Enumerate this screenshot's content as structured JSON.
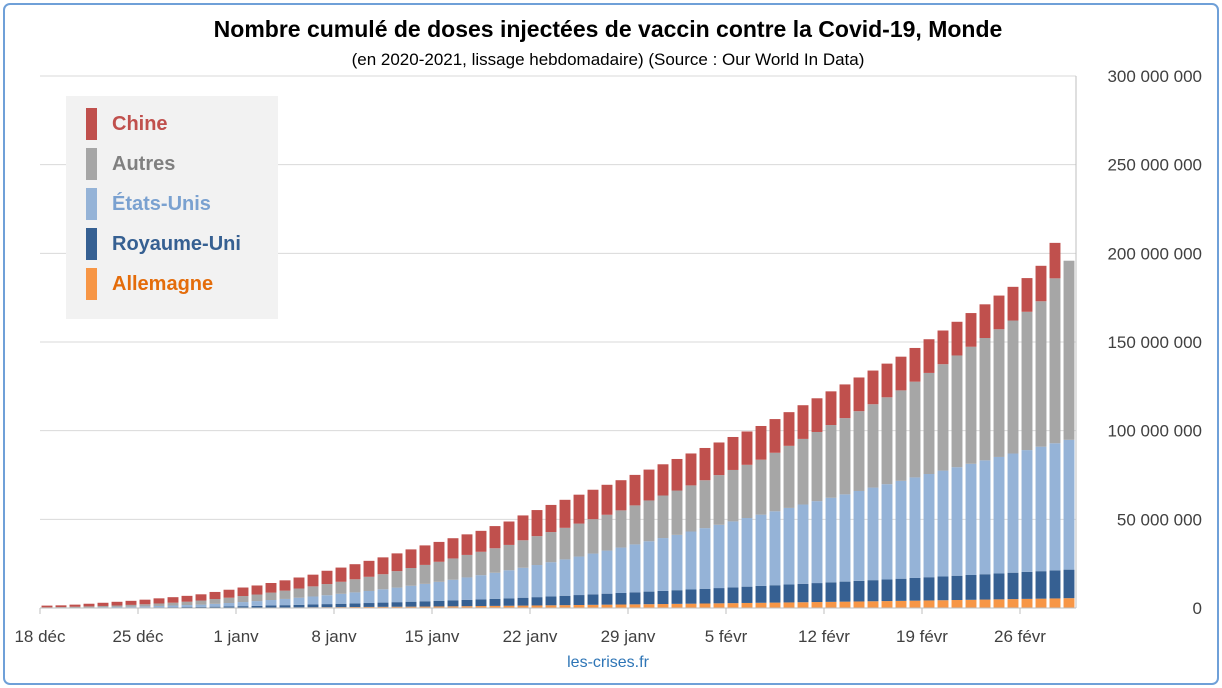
{
  "chart_data": {
    "type": "bar",
    "stacked": true,
    "title": "Nombre cumulé de doses injectées de vaccin contre la Covid-19, Monde",
    "subtitle": "(en 2020-2021, lissage hebdomadaire) (Source : Our World In Data)",
    "source_credit": "les-crises.fr",
    "xlabel": "",
    "ylabel": "",
    "ylim": [
      0,
      300000000
    ],
    "y_axis_position": "right",
    "y_ticks": [
      {
        "value": 0,
        "label": "0"
      },
      {
        "value": 50000000,
        "label": "50 000 000"
      },
      {
        "value": 100000000,
        "label": "100 000 000"
      },
      {
        "value": 150000000,
        "label": "150 000 000"
      },
      {
        "value": 200000000,
        "label": "200 000 000"
      },
      {
        "value": 250000000,
        "label": "250 000 000"
      },
      {
        "value": 300000000,
        "label": "300 000 000"
      }
    ],
    "grid": "horizontal",
    "legend_position": "top-left",
    "x_start_label": "18 déc",
    "x_ticks": [
      {
        "index": 0,
        "label": "18 déc"
      },
      {
        "index": 7,
        "label": "25 déc"
      },
      {
        "index": 14,
        "label": "1 janv"
      },
      {
        "index": 21,
        "label": "8 janv"
      },
      {
        "index": 28,
        "label": "15 janv"
      },
      {
        "index": 35,
        "label": "22 janv"
      },
      {
        "index": 42,
        "label": "29 janv"
      },
      {
        "index": 49,
        "label": "5 févr"
      },
      {
        "index": 56,
        "label": "12 févr"
      },
      {
        "index": 63,
        "label": "19 févr"
      },
      {
        "index": 70,
        "label": "26 févr"
      }
    ],
    "n_days": 74,
    "series": [
      {
        "name": "Allemagne",
        "color": "#f79646",
        "values": [
          0,
          0,
          0,
          0,
          0,
          0,
          0,
          0,
          0,
          0,
          0,
          20000,
          50000,
          100000,
          150000,
          200000,
          250000,
          300000,
          350000,
          400000,
          450000,
          500000,
          550000,
          600000,
          650000,
          700000,
          750000,
          800000,
          870000,
          950000,
          1030000,
          1110000,
          1190000,
          1270000,
          1350000,
          1430000,
          1520000,
          1610000,
          1700000,
          1790000,
          1880000,
          1970000,
          2060000,
          2150000,
          2240000,
          2340000,
          2440000,
          2540000,
          2640000,
          2740000,
          2840000,
          2940000,
          3040000,
          3140000,
          3250000,
          3360000,
          3470000,
          3580000,
          3690000,
          3800000,
          3910000,
          4020000,
          4140000,
          4260000,
          4380000,
          4500000,
          4620000,
          4750000,
          4880000,
          5010000,
          5140000,
          5270000,
          5400000,
          5540000
        ]
      },
      {
        "name": "Royaume-Uni",
        "color": "#366092",
        "values": [
          50000,
          100000,
          150000,
          200000,
          250000,
          300000,
          350000,
          400000,
          450000,
          500000,
          550000,
          600000,
          700000,
          800000,
          900000,
          1000000,
          1150000,
          1300000,
          1450000,
          1600000,
          1750000,
          1900000,
          2050000,
          2200000,
          2400000,
          2600000,
          2800000,
          3000000,
          3200000,
          3400000,
          3600000,
          3800000,
          4000000,
          4200000,
          4450000,
          4700000,
          5000000,
          5300000,
          5600000,
          5900000,
          6200000,
          6500000,
          6800000,
          7100000,
          7400000,
          7700000,
          8000000,
          8300000,
          8600000,
          8900000,
          9200000,
          9500000,
          9800000,
          10100000,
          10400000,
          10700000,
          11000000,
          11300000,
          11600000,
          11900000,
          12200000,
          12500000,
          12800000,
          13100000,
          13400000,
          13700000,
          14000000,
          14300000,
          14600000,
          14900000,
          15200000,
          15500000,
          15800000,
          16100000
        ]
      },
      {
        "name": "États-Unis",
        "color": "#95b3d7",
        "values": [
          0,
          0,
          50000,
          100000,
          200000,
          300000,
          400000,
          500000,
          700000,
          900000,
          1100000,
          1300000,
          1600000,
          1900000,
          2300000,
          2700000,
          3100000,
          3500000,
          4000000,
          4500000,
          5000000,
          5600000,
          6200000,
          6800000,
          7500000,
          8200000,
          9000000,
          9800000,
          10700000,
          11600000,
          12600000,
          13600000,
          14700000,
          15800000,
          16900000,
          18100000,
          19300000,
          20500000,
          21700000,
          23000000,
          24300000,
          25600000,
          27000000,
          28400000,
          29800000,
          31200000,
          32700000,
          34200000,
          35700000,
          37200000,
          38700000,
          40200000,
          41700000,
          43200000,
          44700000,
          46200000,
          47700000,
          49200000,
          50700000,
          52200000,
          53700000,
          55200000,
          56700000,
          58200000,
          59700000,
          61200000,
          62700000,
          64200000,
          65700000,
          67200000,
          68700000,
          70200000,
          71700000,
          73200000
        ]
      },
      {
        "name": "Autres",
        "color": "#a6a6a6",
        "values": [
          300000,
          400000,
          500000,
          600000,
          700000,
          800000,
          1000000,
          1200000,
          1400000,
          1600000,
          1900000,
          2300000,
          2700000,
          3000000,
          3400000,
          3700000,
          4200000,
          4700000,
          5200000,
          5700000,
          6300000,
          6800000,
          7400000,
          8000000,
          8500000,
          9300000,
          10000000,
          10700000,
          11300000,
          12000000,
          12700000,
          13200000,
          13800000,
          14300000,
          15500000,
          16300000,
          17000000,
          17800000,
          18600000,
          19400000,
          20200000,
          21000000,
          22000000,
          23000000,
          24000000,
          25000000,
          26000000,
          27000000,
          28000000,
          29000000,
          30000000,
          31000000,
          33000000,
          35000000,
          37000000,
          39000000,
          41000000,
          43000000,
          45000000,
          47000000,
          49000000,
          51000000,
          54000000,
          57000000,
          60000000,
          63000000,
          66000000,
          69000000,
          72000000,
          75000000,
          78000000,
          82000000,
          93000000,
          101000000
        ]
      },
      {
        "name": "Chine",
        "color": "#c0504d",
        "values": [
          1000000,
          1000000,
          1200000,
          1500000,
          1800000,
          2100000,
          2300000,
          2600000,
          2900000,
          3100000,
          3300000,
          3500000,
          4000000,
          4500000,
          4800000,
          5100000,
          5400000,
          5800000,
          6200000,
          6600000,
          7500000,
          8000000,
          8500000,
          9000000,
          9500000,
          10000000,
          10500000,
          11000000,
          11200000,
          11400000,
          11600000,
          11800000,
          12500000,
          13200000,
          14000000,
          14700000,
          15300000,
          15800000,
          16300000,
          16600000,
          16900000,
          17000000,
          17200000,
          17400000,
          17600000,
          17800000,
          18000000,
          18200000,
          18400000,
          18600000,
          18800000,
          19000000,
          19000000,
          19000000,
          19000000,
          19000000,
          19000000,
          19000000,
          19000000,
          19000000,
          19000000,
          19000000,
          19000000,
          19000000,
          19000000,
          19000000,
          19000000,
          19000000,
          19000000,
          19000000,
          19000000,
          20000000,
          20000000,
          0
        ]
      }
    ]
  }
}
